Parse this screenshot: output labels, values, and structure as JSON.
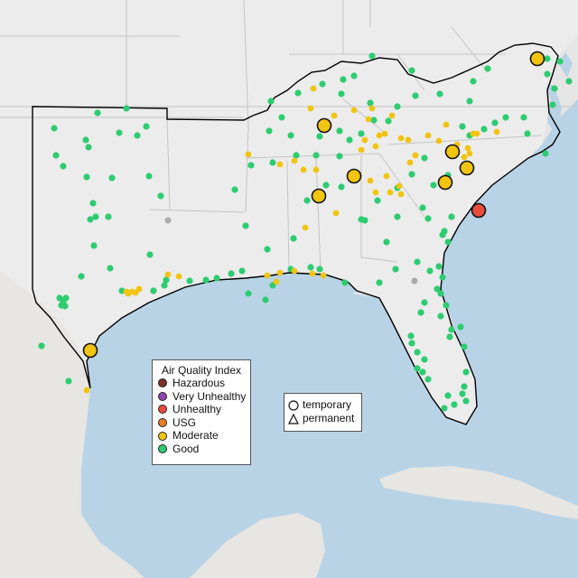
{
  "legend": {
    "title": "Air Quality Index",
    "categories": [
      {
        "label": "Hazardous",
        "color": "#7e2e28"
      },
      {
        "label": "Very Unhealthy",
        "color": "#8e44ad"
      },
      {
        "label": "Unhealthy",
        "color": "#e74c3c"
      },
      {
        "label": "USG",
        "color": "#e67e22"
      },
      {
        "label": "Moderate",
        "color": "#f1c40f"
      },
      {
        "label": "Good",
        "color": "#2ecc71"
      }
    ]
  },
  "monitor_types": {
    "temporary": "temporary",
    "permanent": "permanent"
  },
  "colors": {
    "ocean": "#b9d3e6",
    "land": "#ececec",
    "region_outline": "#000000",
    "state_lines": "#c4c4c4"
  }
}
